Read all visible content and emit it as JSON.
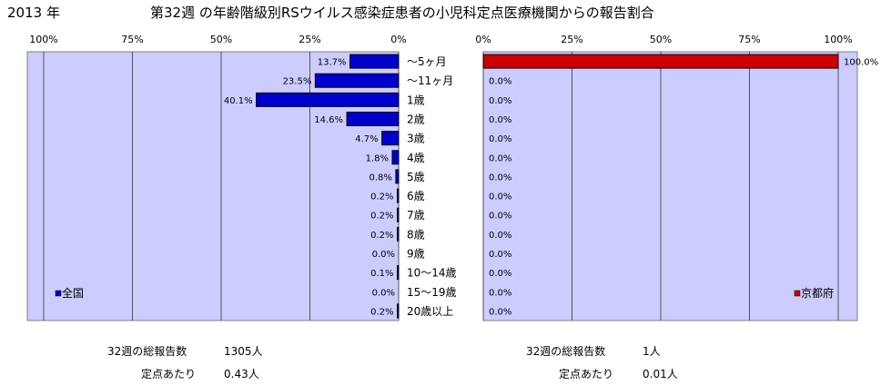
{
  "header": {
    "year": "2013 年",
    "title": "第32週 の年齢階級別RSウイルス感染症患者の小児科定点医療機関からの報告割合"
  },
  "chart_data": [
    {
      "type": "bar",
      "orientation": "horizontal",
      "x_direction": "reversed",
      "categories": [
        "～5ヶ月",
        "～11ヶ月",
        "1歳",
        "2歳",
        "3歳",
        "4歳",
        "5歳",
        "6歳",
        "7歳",
        "8歳",
        "9歳",
        "10～14歳",
        "15～19歳",
        "20歳以上"
      ],
      "series": [
        {
          "name": "全国",
          "color": "#0000cc",
          "values": [
            13.7,
            23.5,
            40.1,
            14.6,
            4.7,
            1.8,
            0.8,
            0.2,
            0.2,
            0.2,
            0.0,
            0.1,
            0.0,
            0.2
          ],
          "labels": [
            "13.7%",
            "23.5%",
            "40.1%",
            "14.6%",
            "4.7%",
            "1.8%",
            "0.8%",
            "0.2%",
            "0.2%",
            "0.2%",
            "0.0%",
            "0.1%",
            "0.0%",
            "0.2%"
          ]
        }
      ],
      "xlim": [
        0,
        100
      ],
      "x_ticks": [
        "100%",
        "75%",
        "50%",
        "25%",
        "0%"
      ],
      "grid": true,
      "legend": "bottom-left",
      "plot_bg": "#ccccff"
    },
    {
      "type": "bar",
      "orientation": "horizontal",
      "categories": [
        "～5ヶ月",
        "～11ヶ月",
        "1歳",
        "2歳",
        "3歳",
        "4歳",
        "5歳",
        "6歳",
        "7歳",
        "8歳",
        "9歳",
        "10～14歳",
        "15～19歳",
        "20歳以上"
      ],
      "series": [
        {
          "name": "京都府",
          "color": "#cc0000",
          "values": [
            100.0,
            0.0,
            0.0,
            0.0,
            0.0,
            0.0,
            0.0,
            0.0,
            0.0,
            0.0,
            0.0,
            0.0,
            0.0,
            0.0
          ],
          "labels": [
            "100.0%",
            "0.0%",
            "0.0%",
            "0.0%",
            "0.0%",
            "0.0%",
            "0.0%",
            "0.0%",
            "0.0%",
            "0.0%",
            "0.0%",
            "0.0%",
            "0.0%",
            "0.0%"
          ]
        }
      ],
      "xlim": [
        0,
        100
      ],
      "x_ticks": [
        "0%",
        "25%",
        "50%",
        "75%",
        "100%"
      ],
      "grid": true,
      "legend": "bottom-right",
      "plot_bg": "#ccccff"
    }
  ],
  "footer": {
    "left": {
      "total_label": "32週の総報告数",
      "total_value": "1305人",
      "per_label": "定点あたり",
      "per_value": "0.43人"
    },
    "right": {
      "total_label": "32週の総報告数",
      "total_value": "1人",
      "per_label": "定点あたり",
      "per_value": "0.01人"
    }
  }
}
